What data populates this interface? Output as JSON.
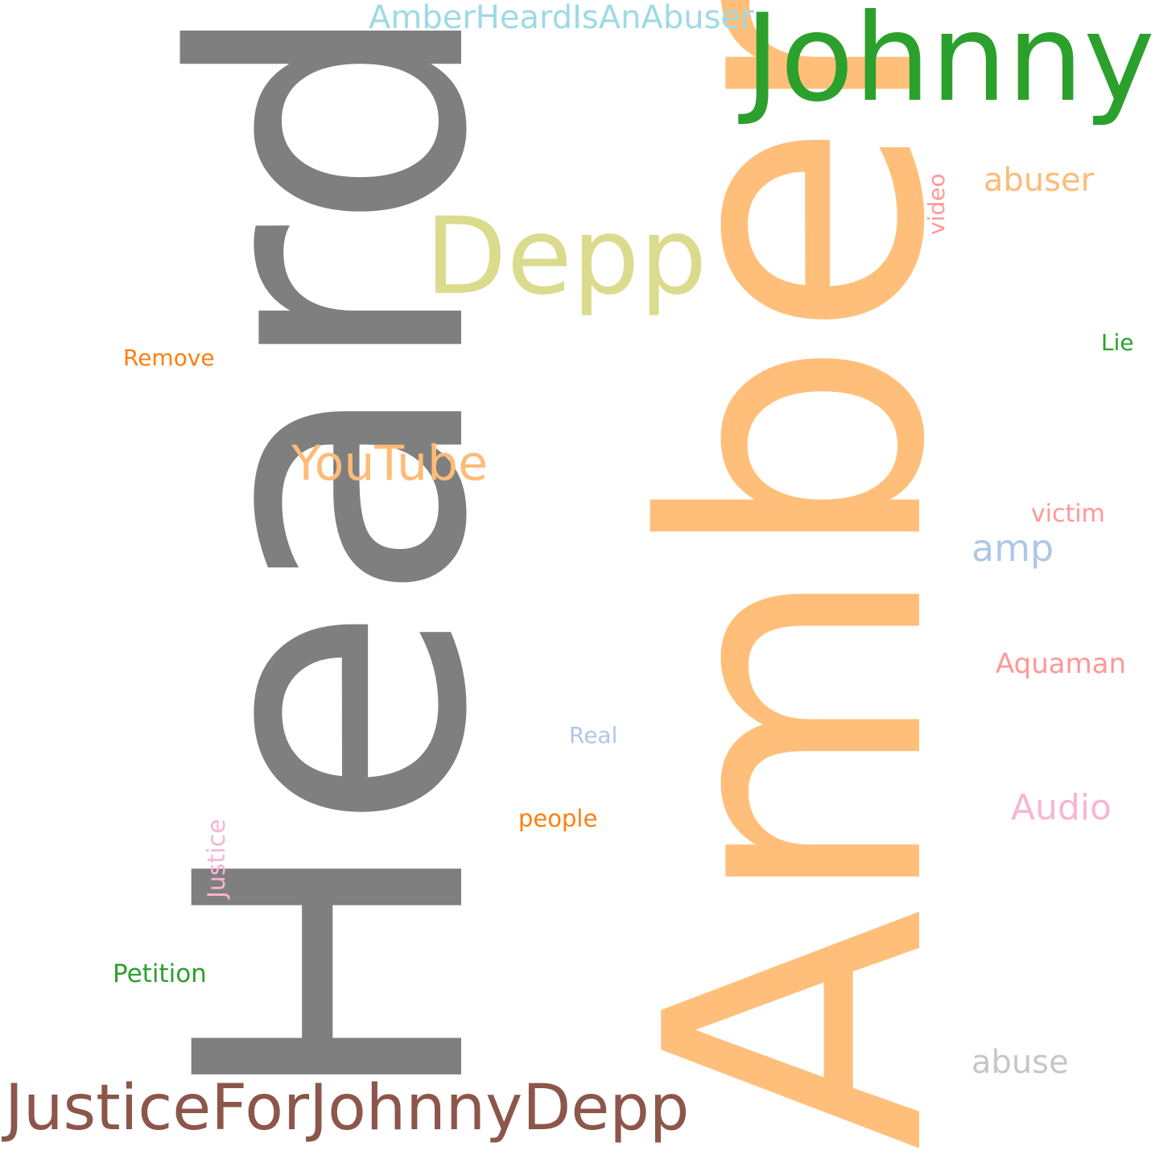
{
  "words": {
    "heard": {
      "text": "Heard",
      "color": "#7f7f7f"
    },
    "amber": {
      "text": "Amber",
      "color": "#ffbf7a"
    },
    "johnny": {
      "text": "Johnny",
      "color": "#2ca02c"
    },
    "depp": {
      "text": "Depp",
      "color": "#dbdb8d"
    },
    "justiceforjohnnydepp": {
      "text": "JusticeForJohnnyDepp",
      "color": "#8c564b"
    },
    "youtube": {
      "text": "YouTube",
      "color": "#ffbb78"
    },
    "amberheardisanabuser": {
      "text": "AmberHeardIsAnAbuser",
      "color": "#9edae5"
    },
    "abuser": {
      "text": "abuser",
      "color": "#ffbb78"
    },
    "video": {
      "text": "video",
      "color": "#ff9896"
    },
    "remove": {
      "text": "Remove",
      "color": "#ff7f0e"
    },
    "lie": {
      "text": "Lie",
      "color": "#2ca02c"
    },
    "victim": {
      "text": "victim",
      "color": "#ff9896"
    },
    "amp": {
      "text": "amp",
      "color": "#aec7e8"
    },
    "aquaman": {
      "text": "Aquaman",
      "color": "#ff9896"
    },
    "real": {
      "text": "Real",
      "color": "#aec7e8"
    },
    "audio": {
      "text": "Audio",
      "color": "#f7b6d2"
    },
    "justice": {
      "text": "Justice",
      "color": "#f7b6d2"
    },
    "people": {
      "text": "people",
      "color": "#ff7f0e"
    },
    "petition": {
      "text": "Petition",
      "color": "#2ca02c"
    },
    "abuse": {
      "text": "abuse",
      "color": "#c7c7c7"
    }
  }
}
